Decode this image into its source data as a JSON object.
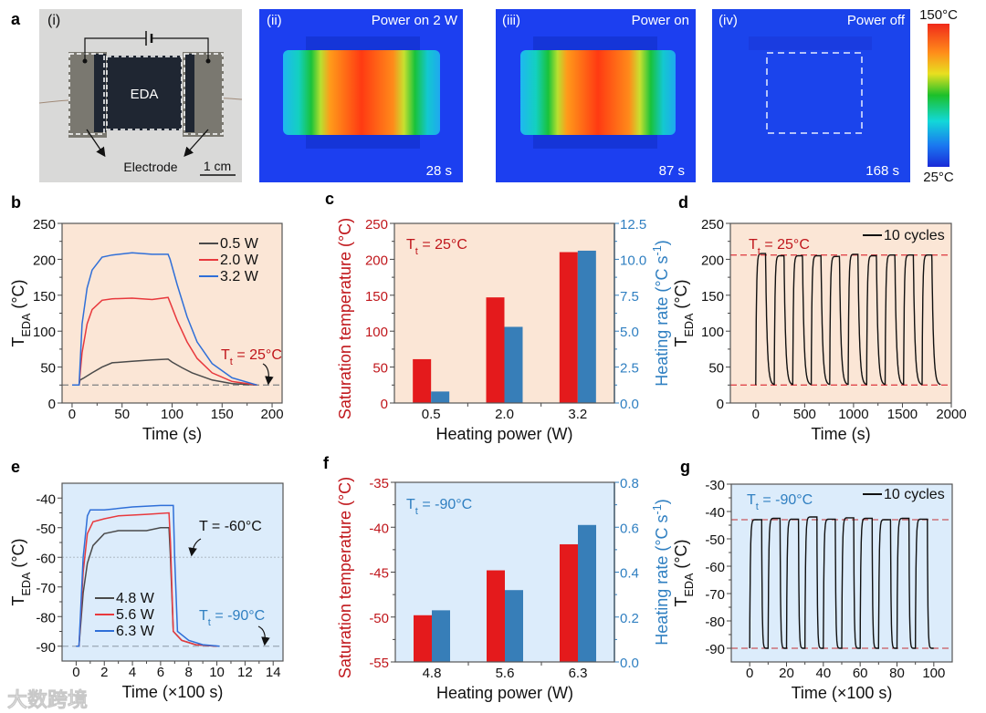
{
  "panel_a": {
    "label": "a",
    "photo": {
      "tag": "(i)",
      "sample": "EDA",
      "electrode": "Electrode",
      "scale": "1 cm"
    },
    "thermal": [
      {
        "tag": "(ii)",
        "title": "Power on 2 W",
        "time": "28 s"
      },
      {
        "tag": "(iii)",
        "title": "Power on",
        "time": "87 s"
      },
      {
        "tag": "(iv)",
        "title": "Power off",
        "time": "168 s"
      }
    ],
    "colorbar": {
      "max": "150°C",
      "min": "25°C"
    }
  },
  "watermark": "大数跨境",
  "chart_data": [
    {
      "panel": "b",
      "type": "line",
      "background": "#fbe6d6",
      "xlabel": "Time (s)",
      "ylabel": {
        "main": "T",
        "sub": "EDA",
        "rest": " (°C)"
      },
      "xlim": [
        -10,
        210
      ],
      "ylim": [
        0,
        250
      ],
      "xticks": [
        0,
        50,
        100,
        150,
        200
      ],
      "yticks": [
        0,
        50,
        100,
        150,
        200,
        250
      ],
      "legend": "top-right",
      "reference_lines": [
        {
          "y": 25,
          "color": "#8a8a8a",
          "style": "dashed"
        }
      ],
      "annotations": [
        {
          "main": "T",
          "sub": "t",
          "rest": " = 25°C",
          "color": "#c0161b"
        }
      ],
      "series": [
        {
          "name": "0.5 W",
          "color": "#4a4a4a",
          "points": [
            [
              0,
              25
            ],
            [
              7,
              25
            ],
            [
              8,
              32
            ],
            [
              12,
              35
            ],
            [
              20,
              42
            ],
            [
              30,
              50
            ],
            [
              40,
              56
            ],
            [
              60,
              58
            ],
            [
              80,
              60
            ],
            [
              96,
              61
            ],
            [
              100,
              57
            ],
            [
              110,
              49
            ],
            [
              120,
              42
            ],
            [
              140,
              32
            ],
            [
              160,
              27
            ],
            [
              185,
              25
            ]
          ]
        },
        {
          "name": "2.0 W",
          "color": "#e8393d",
          "points": [
            [
              0,
              25
            ],
            [
              7,
              25
            ],
            [
              10,
              70
            ],
            [
              15,
              110
            ],
            [
              20,
              130
            ],
            [
              30,
              143
            ],
            [
              40,
              145
            ],
            [
              60,
              146
            ],
            [
              80,
              144
            ],
            [
              96,
              147
            ],
            [
              98,
              140
            ],
            [
              105,
              115
            ],
            [
              115,
              85
            ],
            [
              125,
              62
            ],
            [
              140,
              42
            ],
            [
              160,
              30
            ],
            [
              185,
              25
            ]
          ]
        },
        {
          "name": "3.2 W",
          "color": "#2f6fd8",
          "points": [
            [
              0,
              25
            ],
            [
              7,
              25
            ],
            [
              10,
              110
            ],
            [
              15,
              160
            ],
            [
              20,
              185
            ],
            [
              30,
              203
            ],
            [
              40,
              206
            ],
            [
              60,
              209
            ],
            [
              80,
              207
            ],
            [
              96,
              207
            ],
            [
              98,
              200
            ],
            [
              105,
              165
            ],
            [
              115,
              120
            ],
            [
              125,
              85
            ],
            [
              140,
              55
            ],
            [
              160,
              35
            ],
            [
              185,
              25
            ]
          ]
        }
      ]
    },
    {
      "panel": "c",
      "type": "bar",
      "background": "#fbe6d6",
      "xlabel": "Heating power (W)",
      "ylabel": {
        "main": "Saturation temperature (°C)",
        "color": "#c0161b"
      },
      "ylabel_right": {
        "main": "Heating rate (°C s",
        "sup": "-1",
        "end": ")",
        "color": "#2f7fc1"
      },
      "categories": [
        "0.5",
        "2.0",
        "3.2"
      ],
      "ylim": [
        0,
        250
      ],
      "yticks": [
        0,
        50,
        100,
        150,
        200,
        250
      ],
      "ylim_right": [
        0,
        12.5
      ],
      "yticks_right": [
        "0.0",
        "2.5",
        "5.0",
        "7.5",
        "10.0",
        "12.5"
      ],
      "annotations": [
        {
          "main": "T",
          "sub": "t",
          "rest": " = 25°C",
          "color": "#c0161b"
        }
      ],
      "series": [
        {
          "name": "Saturation temperature",
          "axis": "left",
          "color": "#e41a1c",
          "values": [
            61,
            147,
            210
          ]
        },
        {
          "name": "Heating rate",
          "axis": "right",
          "color": "#377eb8",
          "values": [
            0.8,
            5.3,
            10.6
          ]
        }
      ]
    },
    {
      "panel": "d",
      "type": "line",
      "background": "#fbe6d6",
      "xlabel": "Time (s)",
      "ylabel": {
        "main": "T",
        "sub": "EDA",
        "rest": " (°C)"
      },
      "xlim": [
        -260,
        2000
      ],
      "ylim": [
        0,
        250
      ],
      "xticks": [
        0,
        500,
        1000,
        1500,
        2000
      ],
      "yticks": [
        0,
        50,
        100,
        150,
        200,
        250
      ],
      "legend": "top-right",
      "reference_lines": [
        {
          "y": 206,
          "color": "#e0474c",
          "style": "dashed"
        },
        {
          "y": 25,
          "color": "#e0474c",
          "style": "dashed"
        }
      ],
      "annotations": [
        {
          "main": "T",
          "sub": "t",
          "rest": " = 25°C",
          "color": "#c0161b"
        }
      ],
      "cycles": {
        "name": "10 cycles",
        "color": "#111111",
        "count": 10,
        "period": 189,
        "on_duration": 100,
        "base": 25,
        "peaks": [
          208,
          205,
          205,
          205,
          204,
          207,
          205,
          206,
          206,
          206
        ],
        "tau_rise": 7,
        "tau_fall": 16
      }
    },
    {
      "panel": "e",
      "type": "line",
      "background": "#dcecfb",
      "xlabel": "Time (×100 s)",
      "ylabel": {
        "main": "T",
        "sub": "EDA",
        "rest": " (°C)"
      },
      "xlim": [
        -1,
        14.7
      ],
      "ylim": [
        -95,
        -35
      ],
      "xticks": [
        0,
        2,
        4,
        6,
        8,
        10,
        12,
        14
      ],
      "yticks": [
        -90,
        -80,
        -70,
        -60,
        -50,
        -40
      ],
      "legend": "bottom-left",
      "reference_lines": [
        {
          "y": -60,
          "color": "#b7c3cf",
          "style": "dotted"
        },
        {
          "y": -90,
          "color": "#9aa8b6",
          "style": "dashed"
        }
      ],
      "annotations": [
        {
          "main": "T = -60°C",
          "color": "#111111"
        },
        {
          "main": "T",
          "sub": "t",
          "rest": " = -90°C",
          "color": "#2f7fc1"
        }
      ],
      "series": [
        {
          "name": "4.8 W",
          "color": "#4a4a4a",
          "points": [
            [
              0,
              -90
            ],
            [
              0.2,
              -90
            ],
            [
              0.5,
              -72
            ],
            [
              0.8,
              -62
            ],
            [
              1.2,
              -56
            ],
            [
              2,
              -52
            ],
            [
              3,
              -51
            ],
            [
              5,
              -51
            ],
            [
              6,
              -50
            ],
            [
              6.6,
              -50
            ],
            [
              6.7,
              -60
            ],
            [
              6.9,
              -85
            ],
            [
              7.5,
              -88
            ],
            [
              8.5,
              -89.5
            ],
            [
              10,
              -90
            ]
          ]
        },
        {
          "name": "5.6 W",
          "color": "#e8393d",
          "points": [
            [
              0,
              -90
            ],
            [
              0.2,
              -90
            ],
            [
              0.5,
              -65
            ],
            [
              0.8,
              -52
            ],
            [
              1.2,
              -48
            ],
            [
              2,
              -47
            ],
            [
              3,
              -46
            ],
            [
              5,
              -45.5
            ],
            [
              6.6,
              -45
            ],
            [
              6.7,
              -55
            ],
            [
              6.9,
              -85
            ],
            [
              7.5,
              -88
            ],
            [
              8.5,
              -89.5
            ],
            [
              10,
              -90
            ]
          ]
        },
        {
          "name": "6.3 W",
          "color": "#2f6fd8",
          "points": [
            [
              0,
              -90
            ],
            [
              0.2,
              -90
            ],
            [
              0.5,
              -60
            ],
            [
              0.8,
              -46
            ],
            [
              1,
              -44
            ],
            [
              2,
              -44
            ],
            [
              4,
              -43
            ],
            [
              6,
              -42.5
            ],
            [
              6.9,
              -42.5
            ],
            [
              7,
              -60
            ],
            [
              7.2,
              -85
            ],
            [
              8,
              -88
            ],
            [
              9,
              -89.5
            ],
            [
              10.2,
              -90
            ]
          ]
        }
      ]
    },
    {
      "panel": "f",
      "type": "bar",
      "background": "#dcecfb",
      "xlabel": "Heating power (W)",
      "ylabel": {
        "main": "Saturation temperature (°C)",
        "color": "#c0161b"
      },
      "ylabel_right": {
        "main": "Heating rate (°C s",
        "sup": "-1",
        "end": ")",
        "color": "#2f7fc1"
      },
      "categories": [
        "4.8",
        "5.6",
        "6.3"
      ],
      "ylim": [
        -55,
        -35
      ],
      "yticks": [
        -55,
        -50,
        -45,
        -40,
        -35
      ],
      "ylim_right": [
        0,
        0.8
      ],
      "yticks_right": [
        "0.0",
        "0.2",
        "0.4",
        "0.6",
        "0.8"
      ],
      "annotations": [
        {
          "main": "T",
          "sub": "t",
          "rest": " = -90°C",
          "color": "#2f7fc1"
        }
      ],
      "series": [
        {
          "name": "Saturation temperature",
          "axis": "left",
          "color": "#e41a1c",
          "values": [
            -49.8,
            -44.8,
            -41.9
          ]
        },
        {
          "name": "Heating rate",
          "axis": "right",
          "color": "#377eb8",
          "values": [
            0.23,
            0.32,
            0.61
          ]
        }
      ]
    },
    {
      "panel": "g",
      "type": "line",
      "background": "#dcecfb",
      "xlabel": "Time (×100 s)",
      "ylabel": {
        "main": "T",
        "sub": "EDA",
        "rest": " (°C)"
      },
      "xlim": [
        -10,
        110
      ],
      "ylim": [
        -95,
        -30
      ],
      "xticks": [
        0,
        20,
        40,
        60,
        80,
        100
      ],
      "yticks": [
        -90,
        -80,
        -70,
        -60,
        -50,
        -40,
        -30
      ],
      "legend": "top-right",
      "reference_lines": [
        {
          "y": -43,
          "color": "#c9575c",
          "style": "dashed"
        },
        {
          "y": -90,
          "color": "#c9575c",
          "style": "dashed"
        }
      ],
      "annotations": [
        {
          "main": "T",
          "sub": "t",
          "rest": " = -90°C",
          "color": "#2f7fc1"
        }
      ],
      "cycles": {
        "name": "10 cycles",
        "color": "#111111",
        "count": 10,
        "period": 10,
        "on_duration": 6.5,
        "base": -90,
        "peaks": [
          -43,
          -42.5,
          -42.8,
          -42,
          -42.8,
          -42.3,
          -42.5,
          -43,
          -42.5,
          -42.8
        ],
        "tau_rise": 0.35,
        "tau_fall": 0.3
      }
    }
  ]
}
